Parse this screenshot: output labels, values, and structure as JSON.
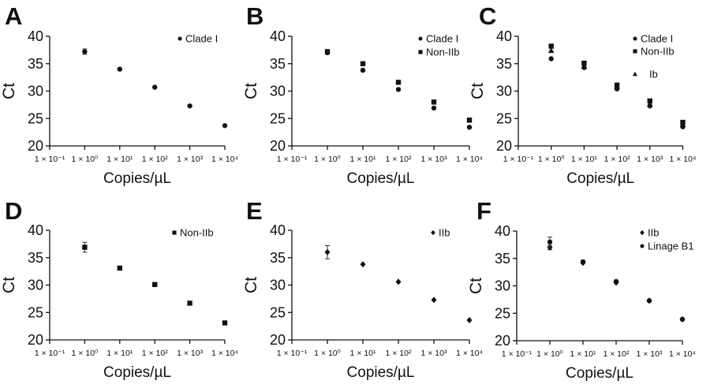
{
  "chart_data": [
    {
      "panel": "A",
      "type": "scatter",
      "xlabel": "Copies/µL",
      "ylabel": "Ct",
      "ylim": [
        20,
        40
      ],
      "yticks": [
        20,
        25,
        30,
        35,
        40
      ],
      "xticks": [
        "1 × 10⁻¹",
        "1 × 10⁰",
        "1 × 10¹",
        "1 × 10²",
        "1 × 10³",
        "1 × 10⁴"
      ],
      "x_scale": "log",
      "grid": false,
      "legend": "top-right",
      "series": [
        {
          "name": "Clade I",
          "marker": "circle",
          "x": [
            1,
            10,
            100,
            1000,
            10000
          ],
          "y": [
            37.2,
            34.0,
            30.7,
            27.3,
            23.7
          ],
          "err": [
            0.5,
            0,
            0,
            0,
            0
          ]
        }
      ]
    },
    {
      "panel": "B",
      "type": "scatter",
      "xlabel": "Copies/µL",
      "ylabel": "Ct",
      "ylim": [
        20,
        40
      ],
      "yticks": [
        20,
        25,
        30,
        35,
        40
      ],
      "xticks": [
        "1 × 10⁻¹",
        "1 × 10⁰",
        "1 × 10¹",
        "1 × 10²",
        "1 × 10³",
        "1 × 10⁴"
      ],
      "x_scale": "log",
      "grid": false,
      "legend": "top-right",
      "series": [
        {
          "name": "Clade I",
          "marker": "circle",
          "x": [
            1,
            10,
            100,
            1000,
            10000
          ],
          "y": [
            37.0,
            33.8,
            30.3,
            26.9,
            23.4
          ],
          "err": [
            0,
            0,
            0,
            0,
            0
          ]
        },
        {
          "name": "Non-IIb",
          "marker": "square",
          "x": [
            1,
            10,
            100,
            1000,
            10000
          ],
          "y": [
            37.2,
            35.0,
            31.6,
            28.0,
            24.7
          ],
          "err": [
            0,
            0,
            0,
            0,
            0
          ]
        }
      ]
    },
    {
      "panel": "C",
      "type": "scatter",
      "xlabel": "Copies/µL",
      "ylabel": "Ct",
      "ylim": [
        20,
        40
      ],
      "yticks": [
        20,
        25,
        30,
        35,
        40
      ],
      "xticks": [
        "1 × 10⁻¹",
        "1 × 10⁰",
        "1 × 10¹",
        "1 × 10²",
        "1 × 10³",
        "1 × 10⁴"
      ],
      "x_scale": "log",
      "grid": false,
      "legend": "top-right",
      "series": [
        {
          "name": "Clade I",
          "marker": "circle",
          "x": [
            1,
            10,
            100,
            1000,
            10000
          ],
          "y": [
            35.9,
            34.3,
            30.4,
            27.3,
            23.5
          ],
          "err": [
            0,
            0,
            0,
            0,
            0
          ]
        },
        {
          "name": "Non-IIb",
          "marker": "square",
          "x": [
            1,
            10,
            100,
            1000,
            10000
          ],
          "y": [
            38.2,
            35.1,
            31.1,
            28.2,
            24.3
          ],
          "err": [
            0,
            0,
            0,
            0,
            0
          ]
        },
        {
          "name": "Ib",
          "marker": "triangle",
          "x": [
            1,
            10,
            100,
            1000,
            10000
          ],
          "y": [
            37.4,
            34.5,
            30.8,
            27.6,
            23.9
          ],
          "err": [
            0,
            0,
            0,
            0,
            0
          ]
        }
      ]
    },
    {
      "panel": "D",
      "type": "scatter",
      "xlabel": "Copies/µL",
      "ylabel": "Ct",
      "ylim": [
        20,
        40
      ],
      "yticks": [
        20,
        25,
        30,
        35,
        40
      ],
      "xticks": [
        "1 × 10⁻¹",
        "1 × 10⁰",
        "1 × 10¹",
        "1 × 10²",
        "1 × 10³",
        "1 × 10⁴"
      ],
      "x_scale": "log",
      "grid": false,
      "legend": "top-right",
      "series": [
        {
          "name": "Non-IIb",
          "marker": "square",
          "x": [
            1,
            10,
            100,
            1000,
            10000
          ],
          "y": [
            36.9,
            33.1,
            30.1,
            26.7,
            23.1
          ],
          "err": [
            0.9,
            0,
            0,
            0,
            0
          ]
        }
      ]
    },
    {
      "panel": "E",
      "type": "scatter",
      "xlabel": "Copies/µL",
      "ylabel": "Ct",
      "ylim": [
        20,
        40
      ],
      "yticks": [
        20,
        25,
        30,
        35,
        40
      ],
      "xticks": [
        "1 × 10⁻¹",
        "1 × 10⁰",
        "1 × 10¹",
        "1 × 10²",
        "1 × 10³",
        "1 × 10⁴"
      ],
      "x_scale": "log",
      "grid": false,
      "legend": "top-right",
      "series": [
        {
          "name": "IIb",
          "marker": "diamond",
          "x": [
            1,
            10,
            100,
            1000,
            10000
          ],
          "y": [
            36.0,
            33.8,
            30.6,
            27.3,
            23.6
          ],
          "err": [
            1.2,
            0,
            0,
            0,
            0
          ]
        }
      ]
    },
    {
      "panel": "F",
      "type": "scatter",
      "xlabel": "Copies/µL",
      "ylabel": "Ct",
      "ylim": [
        20,
        40
      ],
      "yticks": [
        20,
        25,
        30,
        35,
        40
      ],
      "xticks": [
        "1 × 10⁻¹",
        "1 × 10⁰",
        "1 × 10¹",
        "1 × 10²",
        "1 × 10³",
        "1 × 10⁴"
      ],
      "x_scale": "log",
      "grid": false,
      "legend": "top-right",
      "series": [
        {
          "name": "IIb",
          "marker": "diamond",
          "x": [
            1,
            10,
            100,
            1000,
            10000
          ],
          "y": [
            37.0,
            34.2,
            30.6,
            27.3,
            23.9
          ],
          "err": [
            0.4,
            0,
            0,
            0,
            0
          ]
        },
        {
          "name": "Linage B1",
          "marker": "circle",
          "x": [
            1,
            10,
            100,
            1000,
            10000
          ],
          "y": [
            38.0,
            34.4,
            30.8,
            27.3,
            23.9
          ],
          "err": [
            0.9,
            0,
            0,
            0,
            0
          ]
        }
      ]
    }
  ]
}
